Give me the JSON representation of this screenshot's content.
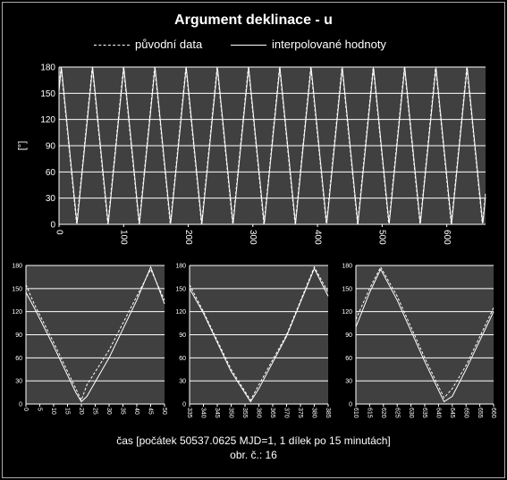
{
  "title": "Argument deklinace - u",
  "legend": {
    "original": "původní data",
    "interpolated": "interpolované hodnoty"
  },
  "footer": {
    "axis_caption": "čas [počátek 50537.0625 MJD=1, 1 dílek po 15 minutách]",
    "figure_number": "obr. č.: 16"
  },
  "colors": {
    "background": "#000000",
    "plot_area": "#404040",
    "grid": "#ffffff",
    "line": "#ffffff"
  },
  "chart_data": [
    {
      "type": "line",
      "name": "main",
      "title": "Argument deklinace - u",
      "ylabel": "[°]",
      "xlim": [
        0,
        660
      ],
      "ylim": [
        0,
        180
      ],
      "xticks": [
        0,
        100,
        200,
        300,
        400,
        500,
        600
      ],
      "yticks": [
        0,
        30,
        60,
        90,
        120,
        150,
        180
      ],
      "grid": true,
      "model": {
        "period": 48.3,
        "phase_x": 52,
        "amplitude": 180
      },
      "series": [
        {
          "name": "původní data",
          "style": "dashed"
        },
        {
          "name": "interpolované hodnoty",
          "style": "solid"
        }
      ]
    },
    {
      "type": "line",
      "name": "zoom-left",
      "xlim": [
        0,
        50
      ],
      "ylim": [
        0,
        180
      ],
      "xticks": [
        0,
        5,
        10,
        15,
        20,
        25,
        30,
        35,
        40,
        45,
        50
      ],
      "yticks": [
        0,
        30,
        60,
        90,
        120,
        150,
        180
      ],
      "grid": true,
      "series": [
        {
          "name": "původní data",
          "style": "dashed",
          "x": [
            0,
            3,
            10,
            18,
            20,
            22,
            30,
            40,
            45,
            50
          ],
          "y": [
            155,
            130,
            80,
            20,
            5,
            25,
            70,
            140,
            175,
            135
          ]
        },
        {
          "name": "interpolované hodnoty",
          "style": "solid",
          "x": [
            0,
            3,
            10,
            18,
            20,
            22,
            30,
            40,
            45,
            50
          ],
          "y": [
            145,
            125,
            75,
            15,
            3,
            10,
            60,
            135,
            178,
            130
          ]
        }
      ]
    },
    {
      "type": "line",
      "name": "zoom-middle",
      "xlim": [
        335,
        385
      ],
      "ylim": [
        0,
        180
      ],
      "xticks": [
        335,
        340,
        345,
        350,
        355,
        360,
        365,
        370,
        375,
        380,
        385
      ],
      "yticks": [
        0,
        30,
        60,
        90,
        120,
        150,
        180
      ],
      "grid": true,
      "series": [
        {
          "name": "původní data",
          "style": "dashed",
          "x": [
            335,
            340,
            350,
            357,
            360,
            370,
            380,
            385
          ],
          "y": [
            155,
            120,
            45,
            5,
            25,
            90,
            178,
            145
          ]
        },
        {
          "name": "interpolované hodnoty",
          "style": "solid",
          "x": [
            335,
            340,
            350,
            357,
            360,
            370,
            380,
            385
          ],
          "y": [
            150,
            118,
            42,
            3,
            20,
            88,
            176,
            140
          ]
        }
      ]
    },
    {
      "type": "line",
      "name": "zoom-right",
      "xlim": [
        610,
        660
      ],
      "ylim": [
        0,
        180
      ],
      "xticks": [
        610,
        615,
        620,
        625,
        630,
        635,
        640,
        645,
        650,
        655,
        660
      ],
      "yticks": [
        0,
        30,
        60,
        90,
        120,
        150,
        180
      ],
      "grid": true,
      "series": [
        {
          "name": "původní data",
          "style": "dashed",
          "x": [
            610,
            615,
            619,
            625,
            635,
            642,
            645,
            650,
            660
          ],
          "y": [
            110,
            150,
            178,
            140,
            60,
            8,
            20,
            50,
            125
          ]
        },
        {
          "name": "interpolované hodnoty",
          "style": "solid",
          "x": [
            610,
            615,
            619,
            625,
            635,
            642,
            645,
            650,
            660
          ],
          "y": [
            100,
            145,
            175,
            135,
            55,
            3,
            10,
            45,
            120
          ]
        }
      ]
    }
  ]
}
